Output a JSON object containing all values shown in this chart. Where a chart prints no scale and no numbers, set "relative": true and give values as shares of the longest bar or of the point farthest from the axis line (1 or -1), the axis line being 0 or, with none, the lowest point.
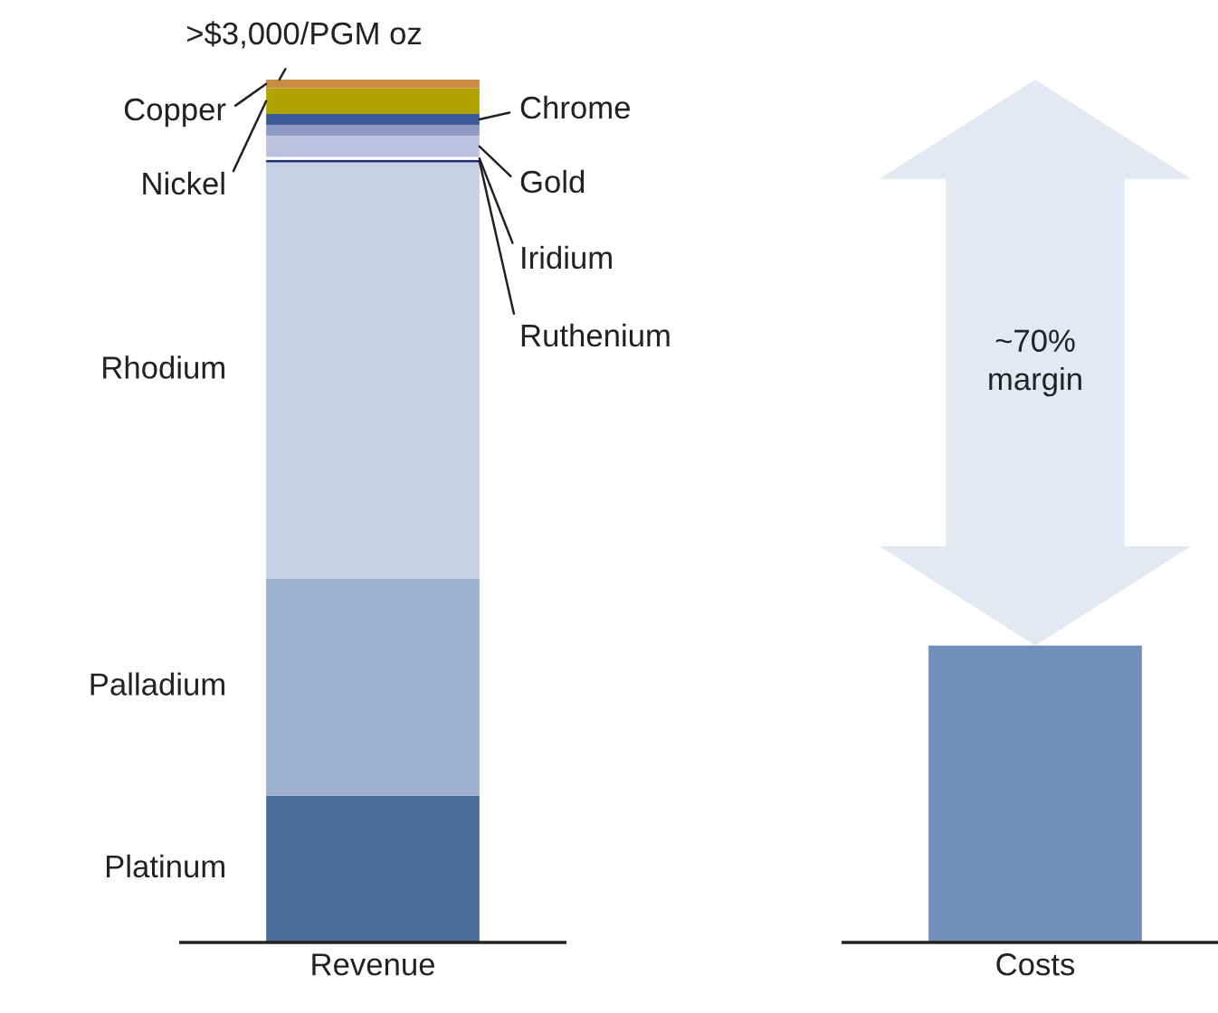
{
  "chart_data": {
    "type": "bar",
    "stacked": true,
    "relative": true,
    "categories": [
      "Revenue",
      "Costs"
    ],
    "series": [
      {
        "name": "Platinum",
        "color": "#4a6a9a",
        "values": [
          0.17,
          null
        ]
      },
      {
        "name": "Palladium",
        "color": "#9eb1cf",
        "values": [
          0.252,
          null
        ]
      },
      {
        "name": "Rhodium",
        "color": "#c5d0e2",
        "values": [
          0.482,
          null
        ]
      },
      {
        "name": "Ruthenium",
        "color": "#1a2f7a",
        "values": [
          0.003,
          null
        ]
      },
      {
        "name": "Iridium",
        "color": "#ffffff",
        "values": [
          0.0034,
          null
        ]
      },
      {
        "name": "Gold",
        "color": "#bcc2de",
        "values": [
          0.0245,
          null
        ]
      },
      {
        "color": "#8f9ac4",
        "values": [
          0.0126,
          null
        ]
      },
      {
        "name": "Chrome",
        "color": "#3c5a98",
        "values": [
          0.0126,
          null
        ]
      },
      {
        "name": "Nickel",
        "color": "#b0a200",
        "values": [
          0.03,
          null
        ]
      },
      {
        "name": "Copper",
        "color": "#c98d45",
        "values": [
          0.0099,
          null
        ]
      },
      {
        "color": "#7090bb",
        "values": [
          null,
          0.344
        ]
      }
    ],
    "annotations": [
      ">$3,000/PGM oz",
      "~70%\nmargin"
    ],
    "grid": false,
    "legend": false
  }
}
